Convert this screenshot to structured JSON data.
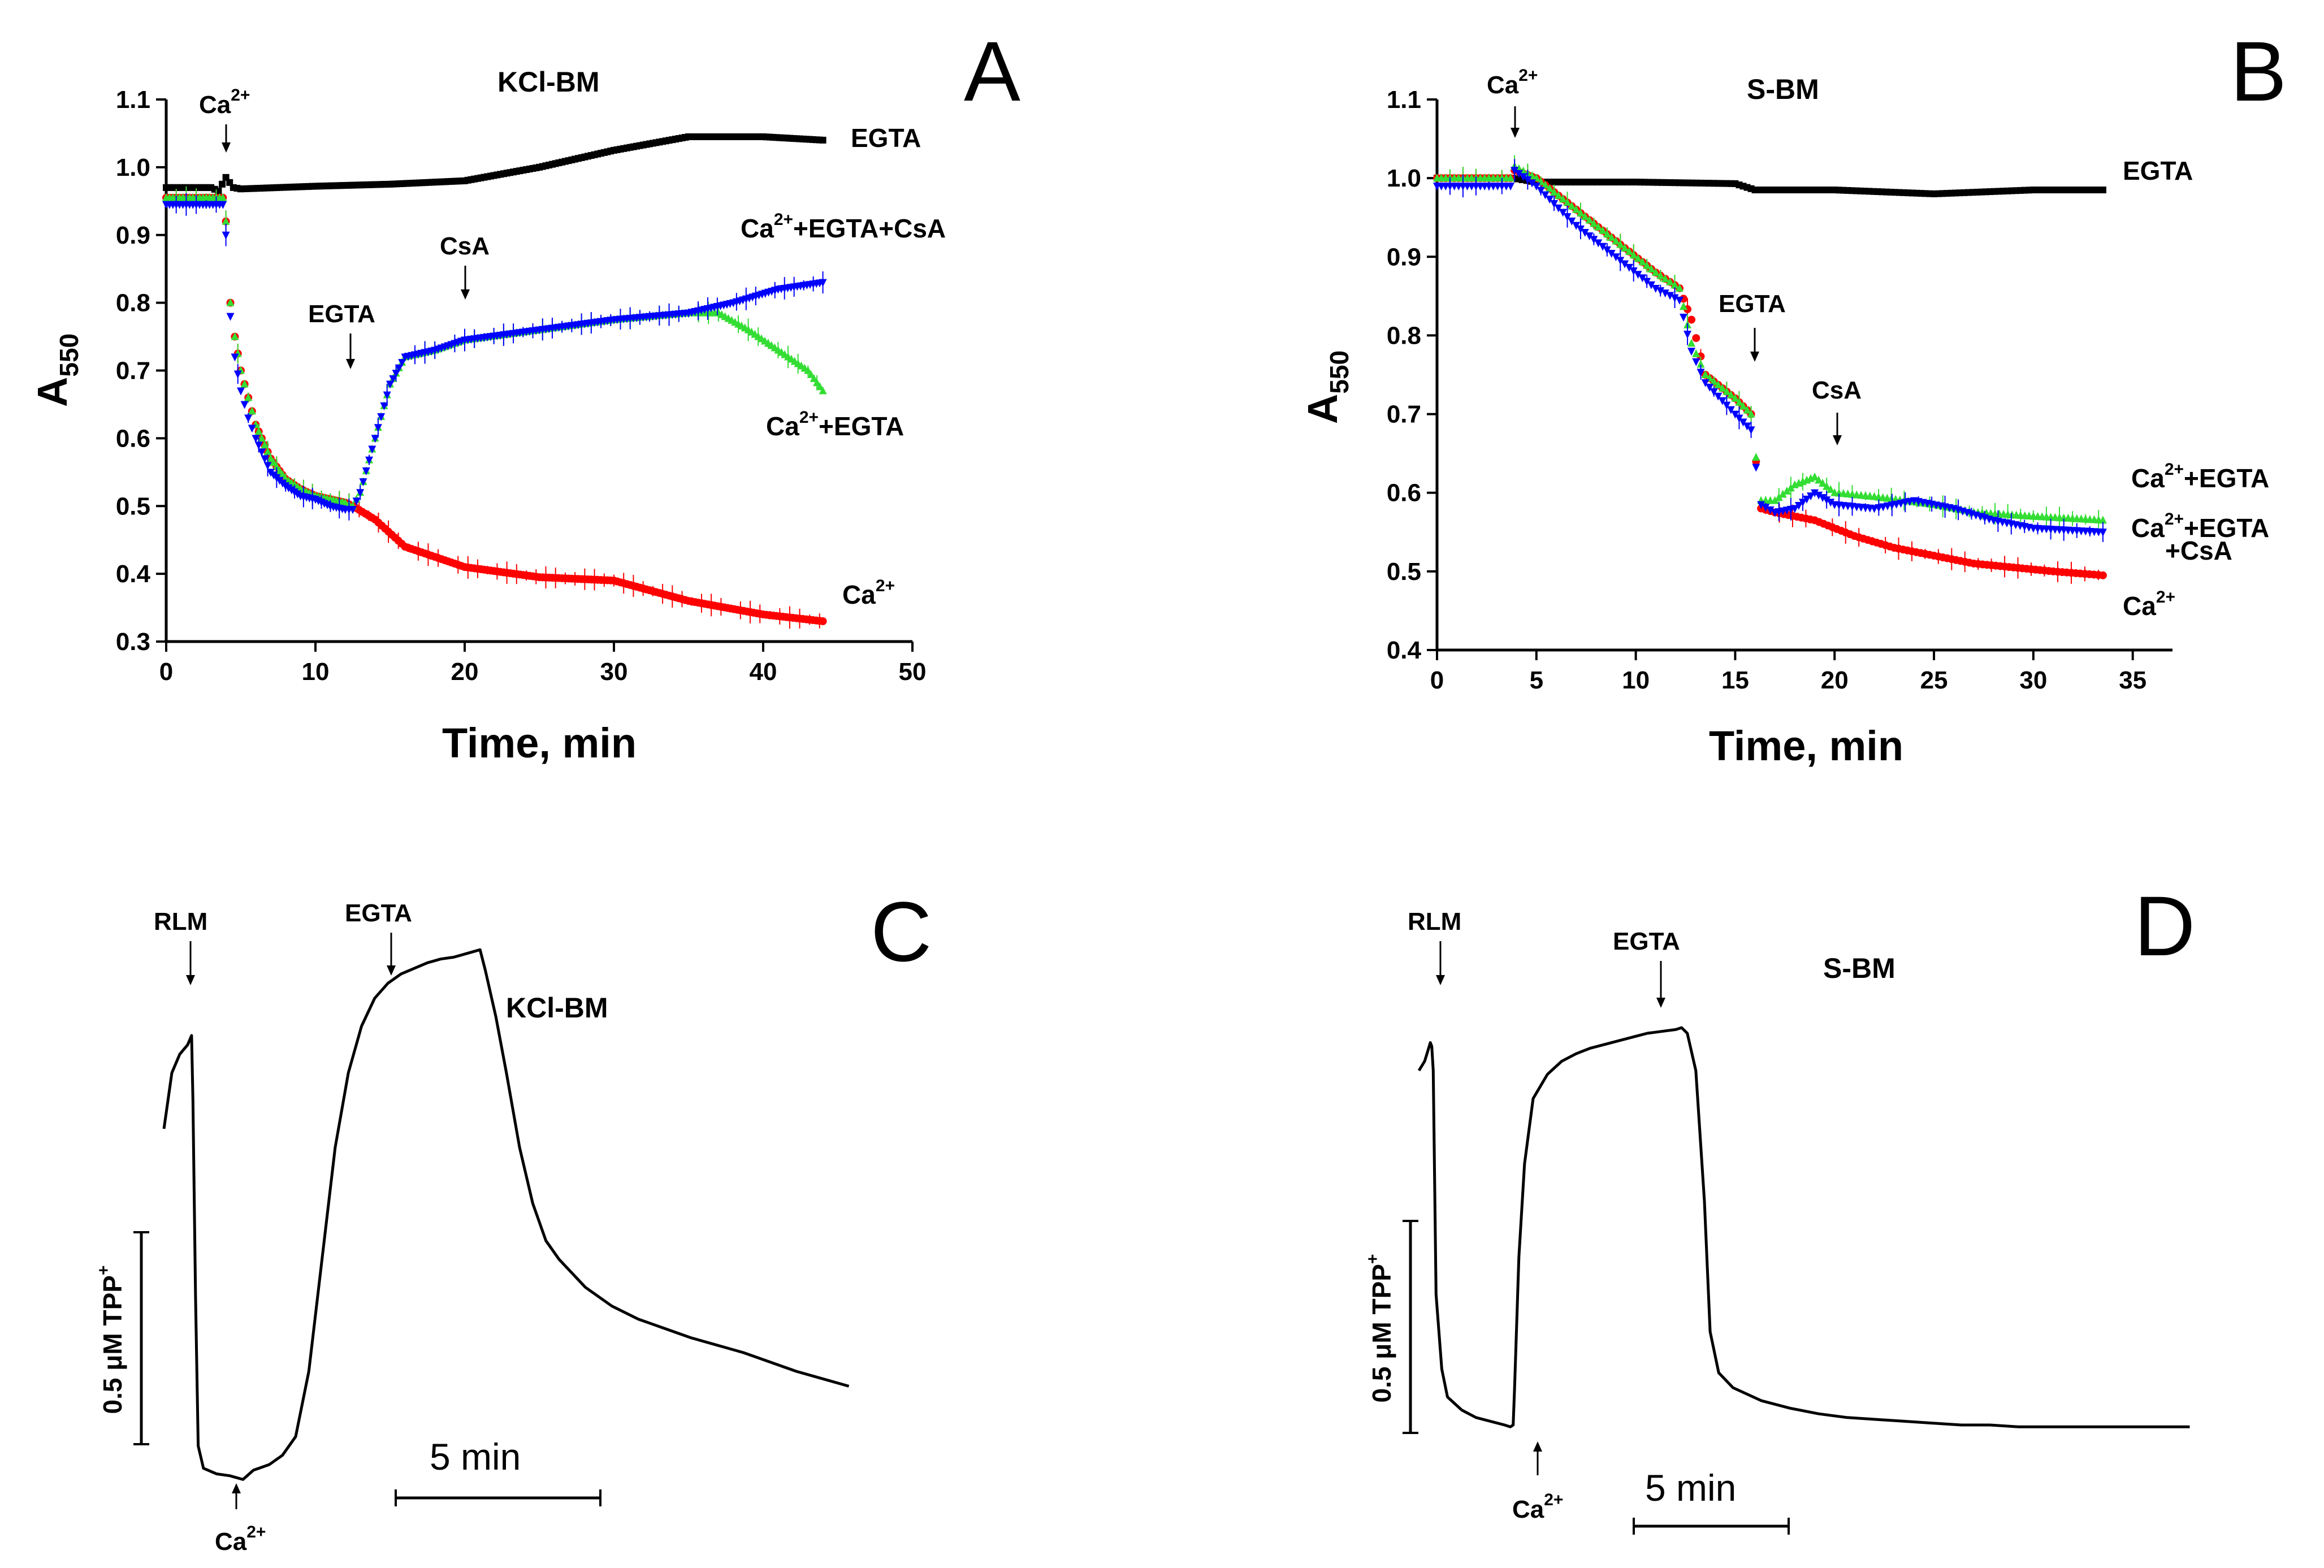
{
  "chart_data": [
    {
      "panel": "A",
      "type": "scatter",
      "title": "KCl-BM",
      "xlabel": "Time, min",
      "ylabel": "A",
      "ylabel_sub": "550",
      "xlim": [
        0,
        50
      ],
      "ylim": [
        0.3,
        1.1
      ],
      "xticks": [
        "0",
        "10",
        "20",
        "30",
        "40",
        "50"
      ],
      "yticks": [
        "0.3",
        "0.4",
        "0.5",
        "0.6",
        "0.7",
        "0.8",
        "0.9",
        "1.0",
        "1.1"
      ],
      "annotations": [
        {
          "text": "Ca",
          "sup": "2+",
          "x": 4,
          "y": 0.985
        },
        {
          "text": "EGTA",
          "x": 12.5,
          "y": 0.5
        },
        {
          "text": "CsA",
          "x": 20,
          "y": 0.75
        }
      ],
      "series": [
        {
          "name": "EGTA",
          "label": "EGTA",
          "color": "#000000",
          "marker": "square",
          "x": [
            0,
            3,
            3.5,
            4,
            4.5,
            5,
            10,
            15,
            20,
            25,
            30,
            35,
            40,
            44
          ],
          "y": [
            0.97,
            0.97,
            0.965,
            0.985,
            0.97,
            0.968,
            0.972,
            0.975,
            0.98,
            1.0,
            1.025,
            1.045,
            1.045,
            1.04
          ]
        },
        {
          "name": "Ca2+",
          "label": "Ca",
          "label_sup": "2+",
          "color": "#ff0000",
          "marker": "circle",
          "x": [
            0,
            3.8,
            4,
            4.3,
            4.6,
            5,
            5.5,
            6,
            7,
            8,
            9,
            10,
            11,
            12,
            12.5,
            14,
            16,
            20,
            25,
            30,
            35,
            40,
            44
          ],
          "y": [
            0.955,
            0.955,
            0.92,
            0.8,
            0.75,
            0.7,
            0.66,
            0.62,
            0.57,
            0.54,
            0.525,
            0.515,
            0.51,
            0.505,
            0.5,
            0.48,
            0.44,
            0.41,
            0.395,
            0.39,
            0.36,
            0.34,
            0.33
          ]
        },
        {
          "name": "Ca2+ + EGTA",
          "label": "Ca",
          "label_sup": "2+",
          "label_rest": "+EGTA",
          "color": "#33dd33",
          "marker": "triangle-up",
          "x": [
            0,
            3.8,
            4,
            4.3,
            4.6,
            5,
            5.5,
            6,
            7,
            8,
            9,
            10,
            11,
            12,
            12.5,
            13,
            14,
            15,
            16,
            18,
            20,
            25,
            30,
            35,
            37,
            39,
            41,
            43,
            44
          ],
          "y": [
            0.955,
            0.955,
            0.92,
            0.8,
            0.75,
            0.7,
            0.66,
            0.62,
            0.57,
            0.54,
            0.525,
            0.515,
            0.51,
            0.505,
            0.5,
            0.52,
            0.6,
            0.68,
            0.72,
            0.73,
            0.745,
            0.76,
            0.775,
            0.785,
            0.785,
            0.76,
            0.73,
            0.7,
            0.67
          ]
        },
        {
          "name": "Ca2+ + EGTA + CsA",
          "label": "Ca",
          "label_sup": "2+",
          "label_rest": "+EGTA+CsA",
          "color": "#0000ff",
          "marker": "triangle-down",
          "x": [
            0,
            3.8,
            4,
            4.3,
            4.6,
            5,
            5.5,
            6,
            7,
            8,
            9,
            10,
            11,
            12,
            12.5,
            13,
            14,
            15,
            16,
            18,
            20,
            25,
            30,
            35,
            38,
            41,
            44
          ],
          "y": [
            0.945,
            0.945,
            0.9,
            0.78,
            0.72,
            0.67,
            0.63,
            0.6,
            0.55,
            0.53,
            0.515,
            0.51,
            0.5,
            0.495,
            0.495,
            0.52,
            0.6,
            0.68,
            0.72,
            0.73,
            0.745,
            0.76,
            0.775,
            0.785,
            0.8,
            0.82,
            0.83
          ]
        }
      ]
    },
    {
      "panel": "B",
      "type": "scatter",
      "title": "S-BM",
      "xlabel": "Time, min",
      "ylabel": "A",
      "ylabel_sub": "550",
      "xlim": [
        0,
        37
      ],
      "ylim": [
        0.4,
        1.1
      ],
      "xticks": [
        "0",
        "5",
        "10",
        "15",
        "20",
        "25",
        "30",
        "35"
      ],
      "yticks": [
        "0.4",
        "0.5",
        "0.6",
        "0.7",
        "0.8",
        "0.9",
        "1.0",
        "1.1"
      ],
      "annotations": [
        {
          "text": "Ca",
          "sup": "2+",
          "x": 3.8,
          "y": 1.02
        },
        {
          "text": "EGTA",
          "x": 15.5,
          "y": 0.72
        },
        {
          "text": "CsA",
          "x": 20,
          "y": 0.61
        }
      ],
      "series": [
        {
          "name": "EGTA",
          "label": "EGTA",
          "color": "#000000",
          "marker": "square",
          "x": [
            0,
            3.8,
            5,
            10,
            15,
            16,
            20,
            25,
            30,
            33.5
          ],
          "y": [
            1.0,
            1.0,
            0.995,
            0.995,
            0.993,
            0.985,
            0.985,
            0.98,
            0.985,
            0.985
          ]
        },
        {
          "name": "Ca2+",
          "label": "Ca",
          "label_sup": "2+",
          "color": "#ff0000",
          "marker": "circle",
          "x": [
            0,
            3.7,
            3.9,
            5,
            7,
            9,
            11,
            12.2,
            12.8,
            13.5,
            15,
            15.8,
            16.3,
            17,
            19,
            21,
            23,
            25,
            27,
            29,
            31,
            33.5
          ],
          "y": [
            1.0,
            1.0,
            1.01,
            1.0,
            0.96,
            0.92,
            0.88,
            0.86,
            0.82,
            0.75,
            0.72,
            0.7,
            0.58,
            0.575,
            0.565,
            0.545,
            0.53,
            0.52,
            0.51,
            0.505,
            0.5,
            0.495
          ]
        },
        {
          "name": "Ca2+ + EGTA",
          "label": "Ca",
          "label_sup": "2+",
          "label_rest": "+EGTA",
          "color": "#33dd33",
          "marker": "triangle-up",
          "x": [
            0,
            3.7,
            3.9,
            5,
            7,
            9,
            11,
            12.2,
            12.8,
            13.5,
            15,
            15.8,
            16.3,
            17,
            18,
            19,
            20,
            22,
            25,
            27,
            30,
            33.5
          ],
          "y": [
            1.0,
            1.0,
            1.015,
            1.0,
            0.96,
            0.92,
            0.88,
            0.86,
            0.79,
            0.75,
            0.72,
            0.7,
            0.59,
            0.59,
            0.61,
            0.62,
            0.6,
            0.595,
            0.585,
            0.575,
            0.57,
            0.565
          ]
        },
        {
          "name": "Ca2+ + EGTA + CsA",
          "label": "Ca",
          "label_sup": "2+",
          "label_rest": "+EGTA",
          "label_line2": "+CsA",
          "color": "#0000ff",
          "marker": "triangle-down",
          "x": [
            0,
            3.7,
            3.9,
            5,
            7,
            9,
            11,
            12.2,
            12.8,
            13.5,
            15,
            15.8,
            16.3,
            17,
            18,
            19,
            20,
            22,
            24,
            26,
            28,
            30,
            33.5
          ],
          "y": [
            0.99,
            0.99,
            1.01,
            0.99,
            0.94,
            0.9,
            0.86,
            0.845,
            0.78,
            0.74,
            0.7,
            0.68,
            0.585,
            0.575,
            0.58,
            0.6,
            0.585,
            0.58,
            0.59,
            0.58,
            0.565,
            0.555,
            0.55
          ]
        }
      ]
    },
    {
      "panel": "C",
      "type": "line",
      "title": "KCl-BM",
      "time_scale": "5 min",
      "signal_scale": "0.5 μM TPP",
      "signal_scale_sup": "+",
      "annotations": [
        {
          "text": "RLM",
          "x": 1.1
        },
        {
          "text": "EGTA",
          "x": 12.0
        },
        {
          "text": "Ca",
          "sup": "2+",
          "x": 3.5
        }
      ],
      "x": [
        0,
        0.3,
        0.6,
        0.9,
        1.05,
        1.1,
        1.2,
        1.3,
        1.5,
        2,
        2.5,
        3,
        3.4,
        3.6,
        4,
        4.5,
        5,
        5.5,
        6,
        6.5,
        7,
        7.5,
        8,
        8.5,
        9,
        9.5,
        10,
        10.5,
        11,
        11.5,
        12,
        12.2,
        12.6,
        13,
        13.5,
        14,
        14.5,
        15,
        16,
        17,
        18,
        19,
        20,
        21,
        22,
        23,
        24,
        25,
        26
      ],
      "y": [
        0.1,
        0.4,
        0.5,
        0.55,
        0.6,
        0.25,
        -0.8,
        -1.6,
        -1.72,
        -1.75,
        -1.76,
        -1.78,
        -1.73,
        -1.72,
        -1.7,
        -1.65,
        -1.55,
        -1.2,
        -0.6,
        0.0,
        0.4,
        0.65,
        0.8,
        0.88,
        0.93,
        0.96,
        0.99,
        1.01,
        1.02,
        1.04,
        1.06,
        0.95,
        0.7,
        0.4,
        0.0,
        -0.3,
        -0.5,
        -0.6,
        -0.75,
        -0.85,
        -0.92,
        -0.97,
        -1.02,
        -1.06,
        -1.1,
        -1.15,
        -1.2,
        -1.24,
        -1.28
      ]
    },
    {
      "panel": "D",
      "type": "line",
      "title": "S-BM",
      "time_scale": "5 min",
      "signal_scale": "0.5 μM TPP",
      "signal_scale_sup": "+",
      "annotations": [
        {
          "text": "RLM",
          "x": 0.5
        },
        {
          "text": "EGTA",
          "x": 9.2
        },
        {
          "text": "Ca",
          "sup": "2+",
          "x": 3.3
        }
      ],
      "x": [
        0,
        0.2,
        0.3,
        0.4,
        0.45,
        0.5,
        0.6,
        0.8,
        1,
        1.5,
        2,
        2.5,
        3,
        3.2,
        3.3,
        3.35,
        3.5,
        3.7,
        4,
        4.5,
        5,
        5.5,
        6,
        6.5,
        7,
        7.5,
        8,
        8.5,
        9,
        9.2,
        9.4,
        9.7,
        10,
        10.2,
        10.5,
        11,
        12,
        13,
        14,
        15,
        16,
        17,
        18,
        19,
        20,
        21,
        22,
        23,
        24,
        25,
        26,
        27
      ],
      "y": [
        0.2,
        0.25,
        0.3,
        0.35,
        0.33,
        0.2,
        -1.0,
        -1.4,
        -1.55,
        -1.62,
        -1.66,
        -1.68,
        -1.7,
        -1.71,
        -1.7,
        -1.5,
        -0.8,
        -0.3,
        0.05,
        0.18,
        0.25,
        0.29,
        0.32,
        0.34,
        0.36,
        0.38,
        0.4,
        0.41,
        0.42,
        0.43,
        0.4,
        0.2,
        -0.5,
        -1.2,
        -1.42,
        -1.5,
        -1.57,
        -1.61,
        -1.64,
        -1.66,
        -1.67,
        -1.68,
        -1.69,
        -1.7,
        -1.7,
        -1.71,
        -1.71,
        -1.71,
        -1.71,
        -1.71,
        -1.71,
        -1.71
      ]
    }
  ]
}
